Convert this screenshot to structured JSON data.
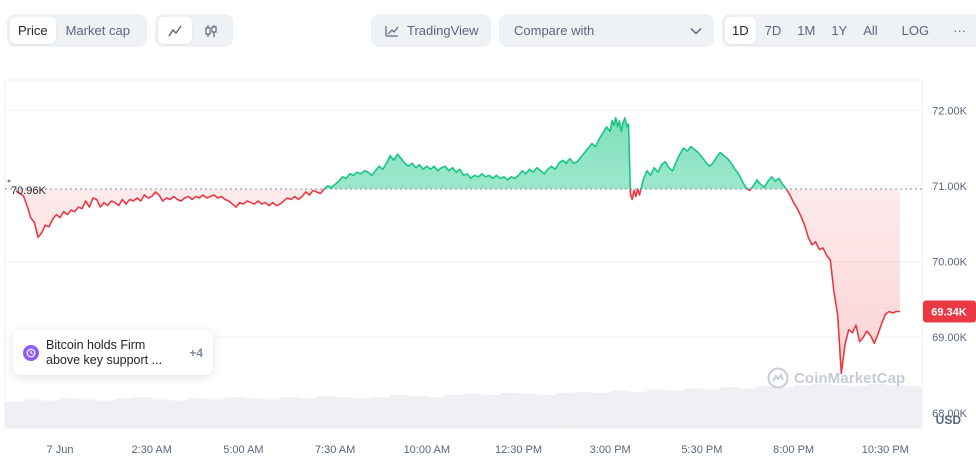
{
  "toolbar": {
    "price_tab": "Price",
    "market_cap_tab": "Market cap",
    "line_view_icon": "line-chart-icon",
    "candle_view_icon": "candlestick-icon",
    "tradingview_label": "TradingView",
    "compare_label": "Compare with",
    "ranges": [
      "1D",
      "7D",
      "1M",
      "1Y",
      "All"
    ],
    "active_range": "1D",
    "log_label": "LOG",
    "more_label": "···"
  },
  "news": {
    "text": "Bitcoin holds Firm above key support ...",
    "more": "+4",
    "icon_color": "#8c5cf5"
  },
  "watermark": "CoinMarketCap",
  "colors": {
    "up": "#16c784",
    "down": "#ea3943",
    "grid": "#eff2f5",
    "axis_text": "#58667e"
  },
  "chart_data": {
    "type": "line",
    "baseline": 70.96,
    "baseline_label": "70.96K",
    "current_label": "69.34K",
    "y_currency": "USD",
    "ylim": [
      67.8,
      72.4
    ],
    "y_ticks": [
      72,
      71,
      70,
      69,
      68
    ],
    "y_tick_labels": [
      "72.00K",
      "71.00K",
      "70.00K",
      "69.00K",
      "68.00K"
    ],
    "xlim": [
      -1.5,
      23.5
    ],
    "x_ticks": [
      0,
      2.5,
      5,
      7.5,
      10,
      12.5,
      15,
      17.5,
      20,
      22.5
    ],
    "x_tick_labels": [
      "7 Jun",
      "2:30 AM",
      "5:00 AM",
      "7:30 AM",
      "10:00 AM",
      "12:30 PM",
      "3:00 PM",
      "5:30 PM",
      "8:00 PM",
      "10:30 PM"
    ],
    "grid": true,
    "points": [
      [
        -1.2,
        70.93
      ],
      [
        -1.0,
        70.87
      ],
      [
        -0.9,
        70.74
      ],
      [
        -0.8,
        70.58
      ],
      [
        -0.7,
        70.52
      ],
      [
        -0.6,
        70.32
      ],
      [
        -0.5,
        70.38
      ],
      [
        -0.4,
        70.48
      ],
      [
        -0.3,
        70.46
      ],
      [
        -0.2,
        70.56
      ],
      [
        -0.1,
        70.62
      ],
      [
        0.0,
        70.58
      ],
      [
        0.1,
        70.66
      ],
      [
        0.2,
        70.62
      ],
      [
        0.3,
        70.68
      ],
      [
        0.4,
        70.66
      ],
      [
        0.5,
        70.72
      ],
      [
        0.6,
        70.7
      ],
      [
        0.7,
        70.8
      ],
      [
        0.8,
        70.72
      ],
      [
        0.9,
        70.84
      ],
      [
        1.0,
        70.82
      ],
      [
        1.1,
        70.72
      ],
      [
        1.2,
        70.78
      ],
      [
        1.3,
        70.74
      ],
      [
        1.4,
        70.8
      ],
      [
        1.5,
        70.78
      ],
      [
        1.6,
        70.74
      ],
      [
        1.7,
        70.82
      ],
      [
        1.8,
        70.76
      ],
      [
        1.9,
        70.82
      ],
      [
        2.0,
        70.8
      ],
      [
        2.1,
        70.84
      ],
      [
        2.2,
        70.8
      ],
      [
        2.3,
        70.88
      ],
      [
        2.4,
        70.84
      ],
      [
        2.5,
        70.86
      ],
      [
        2.6,
        70.92
      ],
      [
        2.7,
        70.88
      ],
      [
        2.8,
        70.8
      ],
      [
        2.9,
        70.84
      ],
      [
        3.0,
        70.82
      ],
      [
        3.1,
        70.86
      ],
      [
        3.2,
        70.82
      ],
      [
        3.3,
        70.8
      ],
      [
        3.4,
        70.84
      ],
      [
        3.5,
        70.86
      ],
      [
        3.6,
        70.82
      ],
      [
        3.7,
        70.86
      ],
      [
        3.8,
        70.84
      ],
      [
        3.9,
        70.88
      ],
      [
        4.0,
        70.84
      ],
      [
        4.1,
        70.86
      ],
      [
        4.2,
        70.88
      ],
      [
        4.3,
        70.84
      ],
      [
        4.4,
        70.86
      ],
      [
        4.5,
        70.82
      ],
      [
        4.6,
        70.8
      ],
      [
        4.7,
        70.76
      ],
      [
        4.8,
        70.72
      ],
      [
        4.9,
        70.78
      ],
      [
        5.0,
        70.76
      ],
      [
        5.1,
        70.8
      ],
      [
        5.2,
        70.78
      ],
      [
        5.3,
        70.76
      ],
      [
        5.4,
        70.8
      ],
      [
        5.5,
        70.76
      ],
      [
        5.6,
        70.78
      ],
      [
        5.7,
        70.74
      ],
      [
        5.8,
        70.78
      ],
      [
        5.9,
        70.74
      ],
      [
        6.0,
        70.76
      ],
      [
        6.1,
        70.8
      ],
      [
        6.2,
        70.84
      ],
      [
        6.3,
        70.82
      ],
      [
        6.4,
        70.86
      ],
      [
        6.5,
        70.82
      ],
      [
        6.6,
        70.86
      ],
      [
        6.7,
        70.92
      ],
      [
        6.8,
        70.88
      ],
      [
        6.9,
        70.94
      ],
      [
        7.0,
        70.92
      ],
      [
        7.1,
        70.9
      ],
      [
        7.2,
        70.96
      ],
      [
        7.3,
        71.0
      ],
      [
        7.4,
        70.98
      ],
      [
        7.5,
        71.02
      ],
      [
        7.6,
        71.06
      ],
      [
        7.7,
        71.12
      ],
      [
        7.8,
        71.1
      ],
      [
        7.9,
        71.16
      ],
      [
        8.0,
        71.14
      ],
      [
        8.1,
        71.18
      ],
      [
        8.2,
        71.16
      ],
      [
        8.3,
        71.2
      ],
      [
        8.4,
        71.18
      ],
      [
        8.5,
        71.14
      ],
      [
        8.6,
        71.2
      ],
      [
        8.7,
        71.26
      ],
      [
        8.8,
        71.22
      ],
      [
        8.9,
        71.3
      ],
      [
        9.0,
        71.4
      ],
      [
        9.1,
        71.34
      ],
      [
        9.2,
        71.42
      ],
      [
        9.3,
        71.36
      ],
      [
        9.4,
        71.3
      ],
      [
        9.5,
        71.26
      ],
      [
        9.6,
        71.3
      ],
      [
        9.7,
        71.24
      ],
      [
        9.8,
        71.28
      ],
      [
        9.9,
        71.22
      ],
      [
        10.0,
        71.26
      ],
      [
        10.1,
        71.22
      ],
      [
        10.2,
        71.26
      ],
      [
        10.3,
        71.2
      ],
      [
        10.4,
        71.24
      ],
      [
        10.5,
        71.26
      ],
      [
        10.6,
        71.2
      ],
      [
        10.7,
        71.24
      ],
      [
        10.8,
        71.18
      ],
      [
        10.9,
        71.22
      ],
      [
        11.0,
        71.14
      ],
      [
        11.1,
        71.16
      ],
      [
        11.2,
        71.1
      ],
      [
        11.3,
        71.14
      ],
      [
        11.4,
        71.12
      ],
      [
        11.5,
        71.16
      ],
      [
        11.6,
        71.12
      ],
      [
        11.7,
        71.14
      ],
      [
        11.8,
        71.1
      ],
      [
        11.9,
        71.14
      ],
      [
        12.0,
        71.1
      ],
      [
        12.1,
        71.12
      ],
      [
        12.2,
        71.08
      ],
      [
        12.3,
        71.12
      ],
      [
        12.4,
        71.1
      ],
      [
        12.5,
        71.14
      ],
      [
        12.6,
        71.2
      ],
      [
        12.7,
        71.16
      ],
      [
        12.8,
        71.22
      ],
      [
        12.9,
        71.18
      ],
      [
        13.0,
        71.24
      ],
      [
        13.1,
        71.2
      ],
      [
        13.2,
        71.16
      ],
      [
        13.3,
        71.22
      ],
      [
        13.4,
        71.26
      ],
      [
        13.5,
        71.22
      ],
      [
        13.6,
        71.3
      ],
      [
        13.7,
        71.34
      ],
      [
        13.8,
        71.3
      ],
      [
        13.9,
        71.36
      ],
      [
        14.0,
        71.3
      ],
      [
        14.1,
        71.32
      ],
      [
        14.2,
        71.38
      ],
      [
        14.3,
        71.44
      ],
      [
        14.4,
        71.5
      ],
      [
        14.5,
        71.56
      ],
      [
        14.6,
        71.52
      ],
      [
        14.7,
        71.62
      ],
      [
        14.8,
        71.7
      ],
      [
        14.9,
        71.78
      ],
      [
        15.0,
        71.72
      ],
      [
        15.05,
        71.86
      ],
      [
        15.1,
        71.8
      ],
      [
        15.15,
        71.9
      ],
      [
        15.2,
        71.78
      ],
      [
        15.25,
        71.86
      ],
      [
        15.3,
        71.72
      ],
      [
        15.35,
        71.84
      ],
      [
        15.4,
        71.9
      ],
      [
        15.45,
        71.78
      ],
      [
        15.5,
        71.82
      ],
      [
        15.55,
        70.9
      ],
      [
        15.6,
        70.82
      ],
      [
        15.65,
        70.94
      ],
      [
        15.7,
        70.86
      ],
      [
        15.75,
        70.96
      ],
      [
        15.8,
        70.88
      ],
      [
        15.85,
        70.98
      ],
      [
        15.9,
        71.08
      ],
      [
        16.0,
        71.2
      ],
      [
        16.1,
        71.14
      ],
      [
        16.2,
        71.24
      ],
      [
        16.3,
        71.18
      ],
      [
        16.4,
        71.28
      ],
      [
        16.5,
        71.32
      ],
      [
        16.6,
        71.24
      ],
      [
        16.7,
        71.2
      ],
      [
        16.8,
        71.32
      ],
      [
        16.9,
        71.42
      ],
      [
        17.0,
        71.5
      ],
      [
        17.1,
        71.46
      ],
      [
        17.2,
        71.52
      ],
      [
        17.3,
        71.48
      ],
      [
        17.4,
        71.44
      ],
      [
        17.5,
        71.38
      ],
      [
        17.6,
        71.32
      ],
      [
        17.7,
        71.26
      ],
      [
        17.8,
        71.3
      ],
      [
        17.9,
        71.38
      ],
      [
        18.0,
        71.44
      ],
      [
        18.1,
        71.4
      ],
      [
        18.2,
        71.36
      ],
      [
        18.3,
        71.3
      ],
      [
        18.4,
        71.22
      ],
      [
        18.5,
        71.16
      ],
      [
        18.6,
        71.06
      ],
      [
        18.7,
        70.98
      ],
      [
        18.8,
        70.94
      ],
      [
        18.9,
        71.0
      ],
      [
        19.0,
        71.08
      ],
      [
        19.1,
        71.02
      ],
      [
        19.2,
        70.98
      ],
      [
        19.3,
        71.06
      ],
      [
        19.4,
        71.12
      ],
      [
        19.5,
        71.06
      ],
      [
        19.6,
        71.1
      ],
      [
        19.7,
        71.02
      ],
      [
        19.8,
        70.96
      ],
      [
        19.9,
        70.88
      ],
      [
        20.0,
        70.78
      ],
      [
        20.1,
        70.7
      ],
      [
        20.2,
        70.6
      ],
      [
        20.3,
        70.48
      ],
      [
        20.4,
        70.32
      ],
      [
        20.5,
        70.22
      ],
      [
        20.6,
        70.26
      ],
      [
        20.7,
        70.16
      ],
      [
        20.8,
        70.18
      ],
      [
        20.9,
        70.08
      ],
      [
        21.0,
        70.02
      ],
      [
        21.1,
        69.6
      ],
      [
        21.2,
        69.3
      ],
      [
        21.3,
        68.52
      ],
      [
        21.4,
        68.9
      ],
      [
        21.5,
        69.1
      ],
      [
        21.6,
        69.06
      ],
      [
        21.7,
        69.16
      ],
      [
        21.8,
        68.94
      ],
      [
        21.9,
        69.0
      ],
      [
        22.0,
        69.08
      ],
      [
        22.1,
        69.02
      ],
      [
        22.2,
        68.92
      ],
      [
        22.3,
        69.04
      ],
      [
        22.4,
        69.18
      ],
      [
        22.5,
        69.3
      ],
      [
        22.6,
        69.34
      ],
      [
        22.7,
        69.32
      ],
      [
        22.8,
        69.34
      ],
      [
        22.9,
        69.34
      ]
    ],
    "volume": [
      0.24,
      0.26,
      0.25,
      0.27,
      0.26,
      0.25,
      0.27,
      0.28,
      0.26,
      0.25,
      0.27,
      0.26,
      0.28,
      0.27,
      0.26,
      0.28,
      0.27,
      0.29,
      0.28,
      0.27,
      0.28,
      0.3,
      0.29,
      0.28,
      0.3,
      0.31,
      0.3,
      0.32,
      0.31,
      0.3,
      0.32,
      0.33,
      0.32,
      0.34,
      0.33,
      0.35,
      0.34,
      0.36,
      0.35,
      0.37,
      0.36,
      0.38,
      0.37,
      0.39,
      0.4,
      0.39,
      0.38,
      0.4,
      0.39,
      0.38
    ]
  }
}
